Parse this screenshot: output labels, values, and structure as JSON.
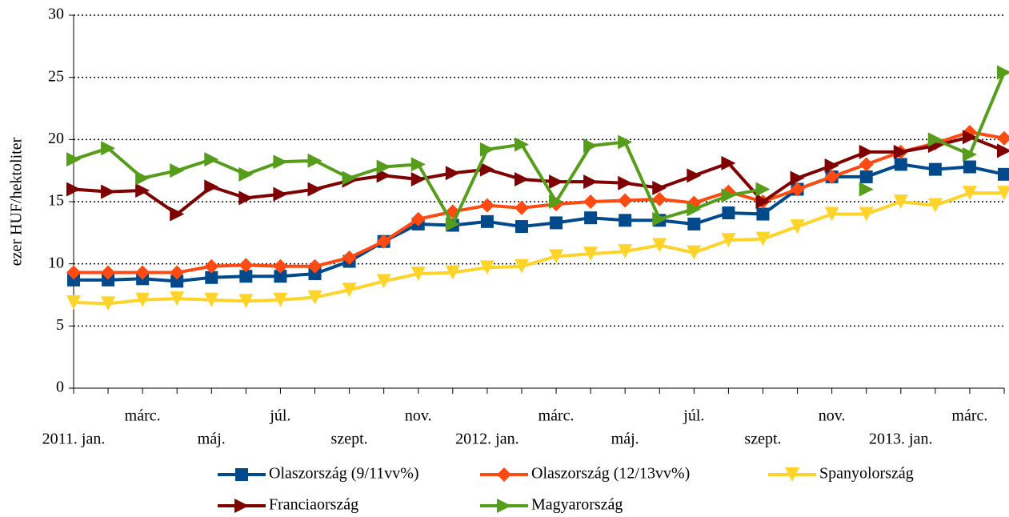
{
  "chart_data": {
    "type": "line",
    "y_label": "ezer HUF/hektoliter",
    "categories": [
      "2011. jan.",
      null,
      "márc.",
      null,
      "máj.",
      null,
      "júl.",
      null,
      "szept.",
      null,
      "nov.",
      null,
      "2012. jan.",
      null,
      "márc.",
      null,
      "máj.",
      null,
      "júl.",
      null,
      "szept.",
      null,
      "nov.",
      null,
      "2013. jan.",
      null,
      "márc.",
      null
    ],
    "series": [
      {
        "name": "Olaszország (9/11vv%)",
        "color": "#004a8c",
        "marker": "square",
        "values": [
          8.7,
          8.7,
          8.8,
          8.6,
          8.9,
          9.0,
          9.0,
          9.2,
          10.2,
          11.8,
          13.2,
          13.1,
          13.4,
          13.0,
          13.3,
          13.7,
          13.5,
          13.5,
          13.2,
          14.1,
          14.0,
          16.0,
          17.0,
          17.0,
          18.0,
          17.6,
          17.8,
          17.2
        ]
      },
      {
        "name": "Olaszország (12/13vv%)",
        "color": "#ff4a12",
        "marker": "diamond",
        "values": [
          9.3,
          9.3,
          9.3,
          9.3,
          9.8,
          9.9,
          9.8,
          9.8,
          10.5,
          11.8,
          13.6,
          14.2,
          14.7,
          14.5,
          14.8,
          15.0,
          15.1,
          15.2,
          14.9,
          15.8,
          15.0,
          16.0,
          17.0,
          18.0,
          19.0,
          19.7,
          20.6,
          20.1
        ]
      },
      {
        "name": "Spanyolország",
        "color": "#ffd42a",
        "marker": "triangle-down",
        "values": [
          6.9,
          6.8,
          7.1,
          7.2,
          7.1,
          7.0,
          7.1,
          7.3,
          7.9,
          8.6,
          9.2,
          9.3,
          9.7,
          9.8,
          10.6,
          10.8,
          11.0,
          11.5,
          10.9,
          11.9,
          12.0,
          13.0,
          14.0,
          14.0,
          15.0,
          14.7,
          15.7,
          15.7
        ]
      },
      {
        "name": "Franciaország",
        "color": "#7f0000",
        "marker": "triangle-right",
        "values": [
          16.0,
          15.8,
          15.9,
          14.0,
          16.2,
          15.3,
          15.6,
          16.0,
          16.7,
          17.1,
          16.8,
          17.3,
          17.6,
          16.8,
          16.6,
          16.6,
          16.5,
          16.1,
          17.1,
          18.1,
          15.0,
          16.9,
          17.9,
          19.0,
          19.0,
          19.5,
          20.2,
          19.1
        ]
      },
      {
        "name": "Magyarország",
        "color": "#579d1c",
        "marker": "triangle-right",
        "values": [
          18.4,
          19.3,
          16.9,
          17.5,
          18.4,
          17.2,
          18.2,
          18.3,
          16.9,
          17.8,
          18.0,
          13.2,
          19.2,
          19.6,
          15.0,
          19.5,
          19.8,
          13.6,
          14.4,
          15.5,
          16.0,
          null,
          null,
          16.0,
          null,
          20.0,
          18.8,
          25.4
        ]
      }
    ],
    "ylim": [
      0,
      30
    ],
    "yticks": [
      0,
      5,
      10,
      15,
      20,
      25,
      30
    ],
    "grid": true
  }
}
